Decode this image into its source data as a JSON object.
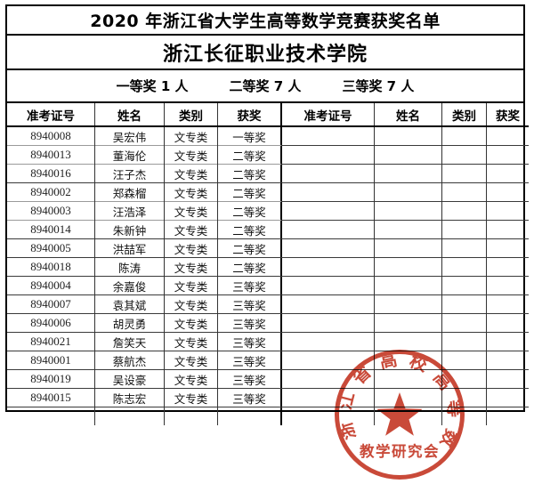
{
  "title": "2020 年浙江省大学生高等数学竞赛获奖名单",
  "school": "浙江长征职业技术学院",
  "summary": {
    "first_prize": "一等奖 1 人",
    "second_prize": "二等奖 7 人",
    "third_prize": "三等奖 7 人"
  },
  "table": {
    "headers": [
      "准考证号",
      "姓名",
      "类别",
      "获奖"
    ],
    "left_rows": [
      {
        "id": "8940008",
        "name": "吴宏伟",
        "category": "文专类",
        "award": "一等奖",
        "sep": "dark"
      },
      {
        "id": "8940013",
        "name": "董海伦",
        "category": "文专类",
        "award": "二等奖",
        "sep": "light"
      },
      {
        "id": "8940016",
        "name": "汪子杰",
        "category": "文专类",
        "award": "二等奖",
        "sep": "light"
      },
      {
        "id": "8940002",
        "name": "郑森榴",
        "category": "文专类",
        "award": "二等奖",
        "sep": "dark"
      },
      {
        "id": "8940003",
        "name": "汪浩泽",
        "category": "文专类",
        "award": "二等奖",
        "sep": "light"
      },
      {
        "id": "8940014",
        "name": "朱新钟",
        "category": "文专类",
        "award": "二等奖",
        "sep": "light"
      },
      {
        "id": "8940005",
        "name": "洪喆军",
        "category": "文专类",
        "award": "二等奖",
        "sep": "dark"
      },
      {
        "id": "8940018",
        "name": "陈涛",
        "category": "文专类",
        "award": "二等奖",
        "sep": "dark"
      },
      {
        "id": "8940004",
        "name": "余嘉俊",
        "category": "文专类",
        "award": "三等奖",
        "sep": "dark"
      },
      {
        "id": "8940007",
        "name": "袁其斌",
        "category": "文专类",
        "award": "三等奖",
        "sep": "dark"
      },
      {
        "id": "8940006",
        "name": "胡灵勇",
        "category": "文专类",
        "award": "三等奖",
        "sep": "dark"
      },
      {
        "id": "8940021",
        "name": "詹笑天",
        "category": "文专类",
        "award": "三等奖",
        "sep": "dark"
      },
      {
        "id": "8940001",
        "name": "蔡航杰",
        "category": "文专类",
        "award": "三等奖",
        "sep": "dark"
      },
      {
        "id": "8940019",
        "name": "吴设豪",
        "category": "文专类",
        "award": "三等奖",
        "sep": "dark"
      },
      {
        "id": "8940015",
        "name": "陈志宏",
        "category": "文专类",
        "award": "三等奖",
        "sep": "dark"
      },
      {
        "id": "",
        "name": "",
        "category": "",
        "award": "",
        "sep": "dark"
      }
    ],
    "right_empty_row_count": 16
  },
  "stamp": {
    "arc_text": "浙江省高校高等数学",
    "bottom_text": "教学研究会",
    "color": "#c53a28"
  }
}
